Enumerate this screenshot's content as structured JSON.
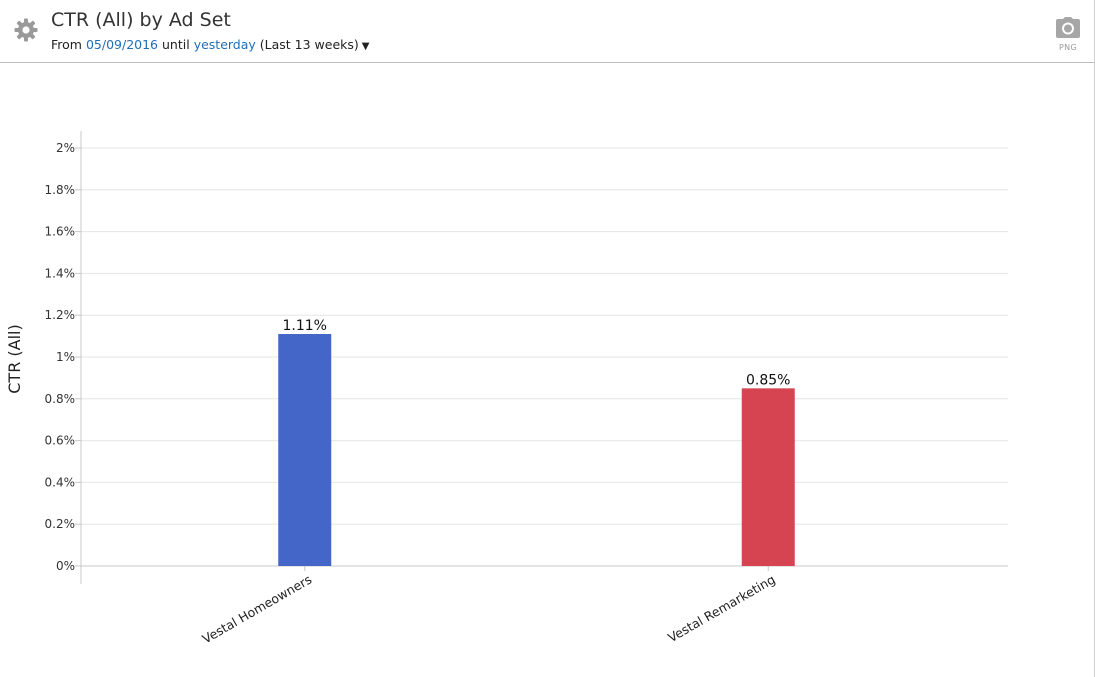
{
  "header": {
    "title": "CTR (All) by Ad Set",
    "from_label": "From",
    "from_date": "05/09/2016",
    "until_label": "until",
    "until_date": "yesterday",
    "range_label": "(Last 13 weeks)",
    "caret_icon": "caret-down-icon",
    "settings_icon": "gear-icon",
    "export_icon": "camera-icon",
    "export_label": "PNG"
  },
  "chart_data": {
    "type": "bar",
    "title": "",
    "xlabel": "",
    "ylabel": "CTR (All)",
    "ylim": [
      0,
      2
    ],
    "yticks": [
      "0%",
      "0.2%",
      "0.4%",
      "0.6%",
      "0.8%",
      "1%",
      "1.2%",
      "1.4%",
      "1.6%",
      "1.8%",
      "2%"
    ],
    "categories": [
      "Vestal Homeowners",
      "Vestal Remarketing"
    ],
    "values": [
      1.11,
      0.85
    ],
    "value_labels": [
      "1.11%",
      "0.85%"
    ],
    "colors": [
      "#4466c8",
      "#d64452"
    ],
    "grid": true
  }
}
